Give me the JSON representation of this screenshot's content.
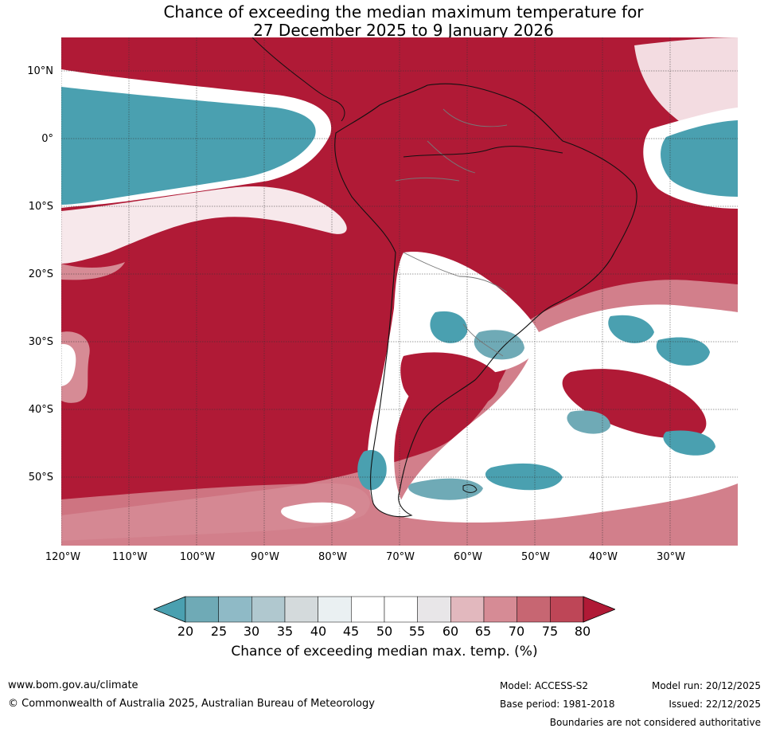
{
  "title": {
    "line1": "Chance of exceeding the median maximum temperature for",
    "line2": "27 December 2025 to 9 January 2026"
  },
  "map": {
    "region": "South America",
    "lat_labels": [
      "10°N",
      "0°",
      "10°S",
      "20°S",
      "30°S",
      "40°S",
      "50°S"
    ],
    "lon_labels": [
      "120°W",
      "110°W",
      "100°W",
      "90°W",
      "80°W",
      "70°W",
      "60°W",
      "50°W",
      "40°W",
      "30°W"
    ],
    "colors": {
      "high": "#b01a36",
      "low": "#4aa0b0",
      "neutral": "#ffffff"
    }
  },
  "colorbar": {
    "ticks": [
      "20",
      "25",
      "30",
      "35",
      "40",
      "45",
      "50",
      "55",
      "60",
      "65",
      "70",
      "75",
      "80"
    ],
    "colors": [
      "#4aa0b0",
      "#6faab6",
      "#8fbac6",
      "#b0c8cf",
      "#d4dadc",
      "#eaf0f2",
      "#ffffff",
      "#ffffff",
      "#e8e6e8",
      "#e2b8be",
      "#d68b95",
      "#c76672",
      "#be4657",
      "#b01a36"
    ],
    "label": "Chance of exceeding median max. temp. (%)"
  },
  "footer": {
    "url": "www.bom.gov.au/climate",
    "copyright": "© Commonwealth of Australia 2025, Australian Bureau of Meteorology",
    "model": "Model: ACCESS-S2",
    "base_period": "Base period: 1981-2018",
    "model_run": "Model run: 20/12/2025",
    "issued": "Issued: 22/12/2025",
    "disclaimer": "Boundaries are not considered authoritative"
  }
}
